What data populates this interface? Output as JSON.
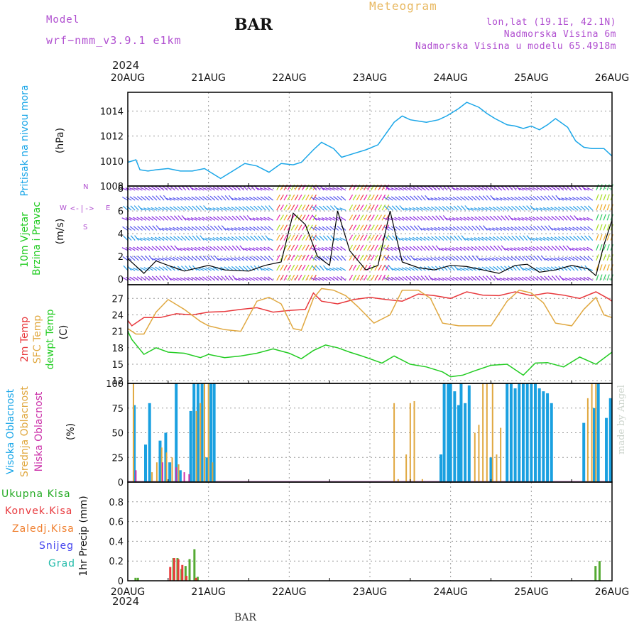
{
  "header": {
    "model_label": "Model",
    "model_run": "wrf−nmm_v3.9.1  e1km",
    "title": "BAR",
    "meteogram": "Meteogram",
    "lonlat": "lon,lat (19.1E, 42.1N)",
    "elevation": "Nadmorska Visina 6m",
    "model_elevation": "Nadmorska Visina u modelu 65.4918m"
  },
  "year_top": "2024",
  "year_bottom": "2024",
  "footer_label": "BAR",
  "watermark": "made by Angel",
  "colors": {
    "pressure": "#1aa6e8",
    "temp2m": "#e8383c",
    "sfc_temp": "#e0a840",
    "dewpoint": "#22cc22",
    "high_cloud": "#1aa0e0",
    "mid_cloud": "#e0a840",
    "low_cloud": "#cc33aa",
    "total_rain": "#55aa33",
    "conv_rain": "#e83c3c",
    "frozen": "#f08030",
    "snow": "#4444ee",
    "hail": "#22bbaa"
  },
  "labels": {
    "pressure": "Pritisak na nivou mora",
    "pressure_unit": "(hPa)",
    "wind1": "10m Vjetar",
    "wind2": "Brzina i Pravac",
    "wind_unit": "(m/s)",
    "compass_n": "N",
    "compass_s": "S",
    "compass_w": "W",
    "compass_e": "E",
    "temp1": "2m Temp",
    "temp2": "SFC Temp",
    "temp3": "dewpt Temp",
    "temp_unit": "(C)",
    "cloud1": "Visoka Oblacnost",
    "cloud2": "Srednja Oblacnost",
    "cloud3": "Niska Oblacnost",
    "cloud_unit": "(%)",
    "precip_unit": "1hr Precip (mm)",
    "rain_total": "Ukupna Kisa",
    "rain_conv": "Konvek.Kisa",
    "rain_frozen": "Zaledj.Kisa",
    "snow": "Snijeg",
    "hail": "Grad"
  },
  "chart_data": [
    {
      "type": "line",
      "panel": "pressure",
      "x_ticks": [
        "20AUG",
        "21AUG",
        "22AUG",
        "23AUG",
        "24AUG",
        "25AUG",
        "26AUG"
      ],
      "ylim": [
        1008,
        1015.5
      ],
      "y_ticks": [
        1008,
        1010,
        1012,
        1014
      ],
      "series": [
        {
          "x": [
            0,
            0.1,
            0.15,
            0.25,
            0.35,
            0.5,
            0.65,
            0.8,
            0.95,
            1.1,
            1.15,
            1.3,
            1.45,
            1.6,
            1.75,
            1.9,
            2.05,
            2.15,
            2.3,
            2.4,
            2.55,
            2.65,
            2.8,
            2.95,
            3.1,
            3.2,
            3.3,
            3.4,
            3.5,
            3.6,
            3.7,
            3.85,
            3.95,
            4.1,
            4.2,
            4.35,
            4.45,
            4.55,
            4.7,
            4.8,
            4.9,
            5.0,
            5.1,
            5.2,
            5.3,
            5.45,
            5.55,
            5.65,
            5.75,
            5.9,
            6.0
          ],
          "values": [
            1009.9,
            1010.1,
            1009.3,
            1009.2,
            1009.3,
            1009.4,
            1009.2,
            1009.2,
            1009.4,
            1008.8,
            1008.6,
            1009.2,
            1009.8,
            1009.6,
            1009.1,
            1009.8,
            1009.7,
            1009.9,
            1010.9,
            1011.5,
            1011.0,
            1010.3,
            1010.6,
            1010.9,
            1011.3,
            1012.2,
            1013.1,
            1013.6,
            1013.3,
            1013.2,
            1013.1,
            1013.3,
            1013.6,
            1014.2,
            1014.7,
            1014.3,
            1013.8,
            1013.4,
            1012.9,
            1012.8,
            1012.6,
            1012.8,
            1012.5,
            1012.9,
            1013.4,
            1012.7,
            1011.6,
            1011.1,
            1011.0,
            1011.0,
            1010.4
          ]
        }
      ]
    },
    {
      "type": "line",
      "panel": "wind",
      "ylim": [
        -0.5,
        8.2
      ],
      "y_ticks": [
        0,
        2,
        4,
        6,
        8
      ],
      "series": [
        {
          "name": "10m speed",
          "x": [
            0,
            0.2,
            0.35,
            0.5,
            0.7,
            1.0,
            1.2,
            1.5,
            1.7,
            1.9,
            2.05,
            2.2,
            2.35,
            2.5,
            2.6,
            2.75,
            2.95,
            3.1,
            3.25,
            3.4,
            3.6,
            3.8,
            4.0,
            4.2,
            4.4,
            4.6,
            4.8,
            4.95,
            5.1,
            5.3,
            5.5,
            5.7,
            5.8,
            5.9,
            6.0
          ],
          "values": [
            1.8,
            0.5,
            1.6,
            1.2,
            0.7,
            1.2,
            0.8,
            0.7,
            1.2,
            1.5,
            5.8,
            4.8,
            2.0,
            1.2,
            6.0,
            2.5,
            0.8,
            1.2,
            6.0,
            1.5,
            1.0,
            0.8,
            1.2,
            1.1,
            0.8,
            0.5,
            1.2,
            1.3,
            0.6,
            0.8,
            1.2,
            0.9,
            0.3,
            3.0,
            5.2
          ]
        }
      ]
    },
    {
      "type": "line",
      "panel": "temperature",
      "ylim": [
        11.5,
        29.5
      ],
      "y_ticks": [
        12,
        15,
        18,
        21,
        24,
        27
      ],
      "series": [
        {
          "name": "2m Temp",
          "x": [
            0,
            0.05,
            0.2,
            0.4,
            0.6,
            0.8,
            1.0,
            1.2,
            1.4,
            1.6,
            1.8,
            2.0,
            2.2,
            2.3,
            2.4,
            2.6,
            2.8,
            3.0,
            3.2,
            3.4,
            3.6,
            3.8,
            4.0,
            4.2,
            4.4,
            4.6,
            4.8,
            5.0,
            5.2,
            5.4,
            5.6,
            5.8,
            5.95,
            6.0
          ],
          "values": [
            23.0,
            22.0,
            23.5,
            23.5,
            24.2,
            24.0,
            24.5,
            24.6,
            25.0,
            25.3,
            24.5,
            24.8,
            25.0,
            28.0,
            26.5,
            26.0,
            26.8,
            27.2,
            26.8,
            26.5,
            27.8,
            27.5,
            27.0,
            28.2,
            27.6,
            27.5,
            28.2,
            27.5,
            28.0,
            27.6,
            27.0,
            28.2,
            27.0,
            26.5
          ]
        },
        {
          "name": "SFC Temp",
          "x": [
            0,
            0.1,
            0.2,
            0.35,
            0.5,
            0.7,
            0.9,
            1.0,
            1.2,
            1.4,
            1.6,
            1.75,
            1.9,
            2.05,
            2.15,
            2.3,
            2.4,
            2.55,
            2.7,
            2.85,
            3.05,
            3.25,
            3.4,
            3.6,
            3.75,
            3.9,
            4.1,
            4.3,
            4.5,
            4.7,
            4.85,
            5.0,
            5.15,
            5.3,
            5.5,
            5.65,
            5.8,
            5.9,
            6.0
          ],
          "values": [
            21.5,
            20.5,
            20.5,
            24.5,
            26.8,
            25.0,
            22.8,
            22.0,
            21.3,
            21.0,
            26.5,
            27.2,
            26.0,
            21.5,
            21.2,
            27.0,
            28.8,
            28.5,
            27.5,
            25.5,
            22.5,
            24.0,
            28.5,
            28.5,
            27.0,
            22.5,
            22.0,
            22.0,
            22.0,
            26.5,
            28.5,
            28.0,
            26.2,
            22.5,
            22.0,
            25.0,
            27.2,
            24.0,
            23.5
          ]
        },
        {
          "name": "dewpt Temp",
          "x": [
            0,
            0.05,
            0.2,
            0.35,
            0.5,
            0.7,
            0.9,
            1.0,
            1.2,
            1.4,
            1.6,
            1.8,
            2.0,
            2.15,
            2.3,
            2.45,
            2.6,
            2.75,
            2.9,
            3.0,
            3.15,
            3.3,
            3.5,
            3.7,
            3.9,
            4.0,
            4.15,
            4.3,
            4.5,
            4.7,
            4.9,
            5.05,
            5.2,
            5.4,
            5.6,
            5.8,
            6.0
          ],
          "values": [
            21.0,
            19.5,
            16.8,
            18.0,
            17.2,
            17.0,
            16.2,
            16.8,
            16.2,
            16.5,
            17.0,
            17.8,
            17.0,
            16.0,
            17.5,
            18.5,
            18.0,
            17.2,
            16.5,
            16.0,
            15.2,
            16.5,
            15.0,
            14.5,
            13.6,
            12.7,
            13.0,
            13.8,
            14.8,
            15.0,
            13.0,
            15.2,
            15.3,
            14.5,
            16.3,
            15.0,
            17.2
          ]
        }
      ]
    },
    {
      "type": "bar",
      "panel": "cloud",
      "ylim": [
        0,
        100
      ],
      "y_ticks": [
        0,
        25,
        50,
        75,
        100
      ],
      "series": [
        {
          "name": "Visoka Oblacnost",
          "x": [
            0.08,
            0.22,
            0.27,
            0.4,
            0.47,
            0.52,
            0.6,
            0.65,
            0.78,
            0.82,
            0.87,
            0.92,
            0.98,
            1.03,
            1.07,
            3.88,
            3.92,
            3.97,
            4.0,
            4.05,
            4.1,
            4.13,
            4.18,
            4.23,
            4.5,
            4.7,
            4.75,
            4.8,
            4.85,
            4.9,
            4.95,
            5.0,
            5.05,
            5.1,
            5.15,
            5.2,
            5.25,
            5.65,
            5.78,
            5.83,
            5.93,
            5.98
          ],
          "values": [
            78,
            38,
            80,
            42,
            50,
            20,
            100,
            12,
            72,
            100,
            100,
            100,
            25,
            100,
            100,
            28,
            100,
            100,
            100,
            92,
            78,
            100,
            80,
            98,
            25,
            100,
            100,
            95,
            100,
            100,
            100,
            100,
            100,
            95,
            92,
            90,
            80,
            60,
            75,
            100,
            65,
            85
          ]
        },
        {
          "name": "Srednja Oblacnost",
          "x": [
            0.07,
            0.3,
            0.36,
            0.42,
            0.48,
            0.55,
            0.63,
            0.85,
            0.9,
            0.95,
            1.0,
            1.05,
            3.3,
            3.35,
            3.45,
            3.5,
            3.55,
            3.65,
            4.3,
            4.35,
            4.4,
            4.45,
            4.52,
            4.57,
            4.62,
            5.7,
            5.75,
            5.8
          ],
          "values": [
            100,
            10,
            20,
            35,
            30,
            25,
            18,
            72,
            80,
            100,
            100,
            20,
            80,
            3,
            28,
            80,
            82,
            3,
            50,
            58,
            100,
            100,
            100,
            28,
            55,
            85,
            100,
            100
          ]
        },
        {
          "name": "Niska Oblacnost",
          "x": [
            0.1,
            0.43,
            0.6,
            0.7,
            0.76
          ],
          "values": [
            12,
            20,
            15,
            10,
            8
          ]
        }
      ]
    },
    {
      "type": "bar",
      "panel": "precip",
      "ylim": [
        0,
        1.0
      ],
      "y_ticks": [
        0,
        0.2,
        0.4,
        0.6,
        0.8
      ],
      "series": [
        {
          "name": "Ukupna Kisa",
          "x": [
            0.1,
            0.13,
            0.57,
            0.62,
            0.67,
            0.72,
            0.77,
            0.83,
            0.87,
            5.8,
            5.85
          ],
          "values": [
            0.03,
            0.03,
            0.23,
            0.23,
            0.12,
            0.15,
            0.22,
            0.32,
            0.04,
            0.15,
            0.2
          ]
        },
        {
          "name": "Konvek.Kisa",
          "x": [
            0.53,
            0.58,
            0.63,
            0.68,
            0.73,
            0.85
          ],
          "values": [
            0.14,
            0.23,
            0.22,
            0.16,
            0.05,
            0.03
          ]
        }
      ]
    }
  ]
}
